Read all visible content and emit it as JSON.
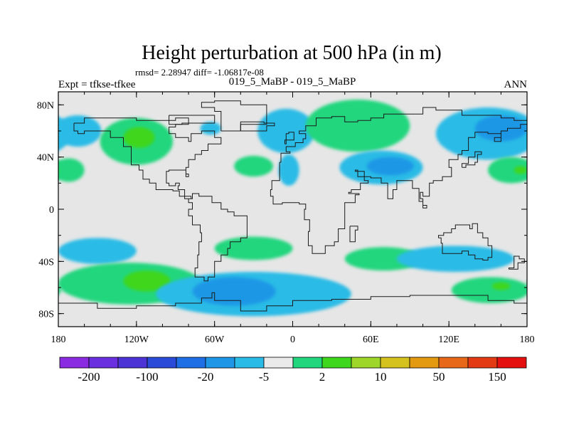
{
  "chart_data": {
    "type": "heatmap",
    "title": "Height perturbation at 500 hPa (in m)",
    "stats_line": "rmsd= 2.28947 diff= -1.06817e-08",
    "subtitle": "019_5_MaBP - 019_5_MaBP",
    "left_label": "Expt = tfkse-tfkee",
    "right_label": "ANN",
    "x_ticks": [
      {
        "value": -180,
        "label": "180"
      },
      {
        "value": -120,
        "label": "120W"
      },
      {
        "value": -60,
        "label": "60W"
      },
      {
        "value": 0,
        "label": "0"
      },
      {
        "value": 60,
        "label": "60E"
      },
      {
        "value": 120,
        "label": "120E"
      },
      {
        "value": 180,
        "label": "180"
      }
    ],
    "y_ticks": [
      {
        "value": 80,
        "label": "80N"
      },
      {
        "value": 40,
        "label": "40N"
      },
      {
        "value": 0,
        "label": "0"
      },
      {
        "value": -40,
        "label": "40S"
      },
      {
        "value": -80,
        "label": "80S"
      }
    ],
    "xlim": [
      -180,
      180
    ],
    "ylim": [
      -90,
      90
    ],
    "colorbar": {
      "colors": [
        "#8a2be2",
        "#6a30e0",
        "#4b33d6",
        "#2a4ad8",
        "#1e6fe6",
        "#1f97e6",
        "#2abbe6",
        "#eaeaea",
        "#22d67e",
        "#3fd61e",
        "#9fd62a",
        "#d6c21e",
        "#e49a10",
        "#e8681a",
        "#e43a14",
        "#e41010"
      ],
      "labels": [
        {
          "after_index": 0,
          "text": "-200"
        },
        {
          "after_index": 2,
          "text": "-100"
        },
        {
          "after_index": 4,
          "text": "-20"
        },
        {
          "after_index": 6,
          "text": "-5"
        },
        {
          "after_index": 8,
          "text": "2"
        },
        {
          "after_index": 10,
          "text": "10"
        },
        {
          "after_index": 12,
          "text": "50"
        },
        {
          "after_index": 14,
          "text": "150"
        }
      ]
    },
    "field_colors": {
      "background": "#e6e6e6",
      "pos_light": "#22d67e",
      "pos_strong": "#3fd61e",
      "neg_light": "#2abbe6",
      "neg_mid": "#1f97e6"
    },
    "anomalies": [
      {
        "sign": "neg",
        "level": 1,
        "lon": -165,
        "lat": 60,
        "rlon": 18,
        "rlat": 12
      },
      {
        "sign": "pos",
        "level": 1,
        "lon": -120,
        "lat": 52,
        "rlon": 28,
        "rlat": 18
      },
      {
        "sign": "pos",
        "level": 2,
        "lon": -118,
        "lat": 55,
        "rlon": 12,
        "rlat": 8
      },
      {
        "sign": "pos",
        "level": 1,
        "lon": -172,
        "lat": 30,
        "rlon": 12,
        "rlat": 9
      },
      {
        "sign": "neg",
        "level": 1,
        "lon": -63,
        "lat": 62,
        "rlon": 8,
        "rlat": 5
      },
      {
        "sign": "pos",
        "level": 1,
        "lon": -30,
        "lat": 33,
        "rlon": 15,
        "rlat": 8
      },
      {
        "sign": "neg",
        "level": 1,
        "lon": -5,
        "lat": 60,
        "rlon": 22,
        "rlat": 17
      },
      {
        "sign": "neg",
        "level": 1,
        "lon": -3,
        "lat": 30,
        "rlon": 8,
        "rlat": 12
      },
      {
        "sign": "pos",
        "level": 1,
        "lon": 50,
        "lat": 64,
        "rlon": 40,
        "rlat": 20
      },
      {
        "sign": "neg",
        "level": 1,
        "lon": 68,
        "lat": 32,
        "rlon": 32,
        "rlat": 13
      },
      {
        "sign": "neg",
        "level": 2,
        "lon": 75,
        "lat": 33,
        "rlon": 18,
        "rlat": 7
      },
      {
        "sign": "neg",
        "level": 1,
        "lon": 150,
        "lat": 58,
        "rlon": 40,
        "rlat": 20
      },
      {
        "sign": "neg",
        "level": 2,
        "lon": 160,
        "lat": 62,
        "rlon": 20,
        "rlat": 10
      },
      {
        "sign": "pos",
        "level": 1,
        "lon": 168,
        "lat": 30,
        "rlon": 18,
        "rlat": 10
      },
      {
        "sign": "pos",
        "level": 2,
        "lon": 175,
        "lat": 30,
        "rlon": 5,
        "rlat": 3
      },
      {
        "sign": "neg",
        "level": 1,
        "lon": -150,
        "lat": -32,
        "rlon": 30,
        "rlat": 10
      },
      {
        "sign": "pos",
        "level": 1,
        "lon": -125,
        "lat": -57,
        "rlon": 55,
        "rlat": 16
      },
      {
        "sign": "pos",
        "level": 2,
        "lon": -112,
        "lat": -55,
        "rlon": 18,
        "rlat": 8
      },
      {
        "sign": "neg",
        "level": 1,
        "lon": -30,
        "lat": -65,
        "rlon": 75,
        "rlat": 17
      },
      {
        "sign": "neg",
        "level": 2,
        "lon": -45,
        "lat": -63,
        "rlon": 32,
        "rlat": 11
      },
      {
        "sign": "pos",
        "level": 1,
        "lon": -30,
        "lat": -30,
        "rlon": 30,
        "rlat": 9
      },
      {
        "sign": "pos",
        "level": 1,
        "lon": 70,
        "lat": -38,
        "rlon": 30,
        "rlat": 9
      },
      {
        "sign": "neg",
        "level": 1,
        "lon": 125,
        "lat": -38,
        "rlon": 45,
        "rlat": 10
      },
      {
        "sign": "pos",
        "level": 1,
        "lon": 152,
        "lat": -62,
        "rlon": 30,
        "rlat": 10
      },
      {
        "sign": "pos",
        "level": 2,
        "lon": 160,
        "lat": -59,
        "rlon": 7,
        "rlat": 3
      }
    ],
    "coastlines": [
      [
        [
          -168,
          66
        ],
        [
          -160,
          70
        ],
        [
          -145,
          70
        ],
        [
          -130,
          70
        ],
        [
          -120,
          68
        ],
        [
          -110,
          68
        ],
        [
          -100,
          68
        ],
        [
          -90,
          70
        ],
        [
          -80,
          70
        ],
        [
          -80,
          65
        ],
        [
          -90,
          63
        ],
        [
          -95,
          58
        ],
        [
          -90,
          55
        ],
        [
          -80,
          52
        ],
        [
          -78,
          58
        ],
        [
          -70,
          60
        ],
        [
          -65,
          60
        ],
        [
          -60,
          55
        ],
        [
          -55,
          50
        ],
        [
          -65,
          45
        ],
        [
          -70,
          42
        ],
        [
          -75,
          38
        ],
        [
          -80,
          32
        ],
        [
          -82,
          27
        ],
        [
          -80,
          25
        ],
        [
          -82,
          30
        ],
        [
          -88,
          30
        ],
        [
          -95,
          29
        ],
        [
          -97,
          25
        ],
        [
          -97,
          20
        ],
        [
          -95,
          18
        ],
        [
          -90,
          20
        ],
        [
          -87,
          18
        ],
        [
          -88,
          15
        ],
        [
          -83,
          10
        ],
        [
          -78,
          8
        ],
        [
          -80,
          5
        ],
        [
          -77,
          0
        ],
        [
          -80,
          -5
        ],
        [
          -77,
          -12
        ],
        [
          -71,
          -18
        ],
        [
          -70,
          -25
        ],
        [
          -72,
          -35
        ],
        [
          -73,
          -45
        ],
        [
          -75,
          -52
        ],
        [
          -68,
          -55
        ],
        [
          -65,
          -52
        ],
        [
          -60,
          -40
        ],
        [
          -55,
          -35
        ],
        [
          -50,
          -30
        ],
        [
          -48,
          -25
        ],
        [
          -40,
          -22
        ],
        [
          -35,
          -10
        ],
        [
          -35,
          -5
        ],
        [
          -45,
          -2
        ],
        [
          -50,
          0
        ],
        [
          -55,
          5
        ],
        [
          -62,
          10
        ],
        [
          -72,
          12
        ],
        [
          -77,
          8
        ],
        [
          -83,
          10
        ],
        [
          -87,
          14
        ],
        [
          -92,
          15
        ],
        [
          -105,
          20
        ],
        [
          -110,
          23
        ],
        [
          -115,
          30
        ],
        [
          -118,
          34
        ],
        [
          -124,
          40
        ],
        [
          -124,
          48
        ],
        [
          -130,
          55
        ],
        [
          -140,
          60
        ],
        [
          -150,
          60
        ],
        [
          -160,
          58
        ],
        [
          -165,
          60
        ],
        [
          -168,
          66
        ]
      ],
      [
        [
          -55,
          60
        ],
        [
          -45,
          60
        ],
        [
          -40,
          65
        ],
        [
          -20,
          70
        ],
        [
          -20,
          80
        ],
        [
          -40,
          83
        ],
        [
          -60,
          82
        ],
        [
          -70,
          78
        ],
        [
          -60,
          75
        ],
        [
          -55,
          70
        ],
        [
          -55,
          60
        ]
      ],
      [
        [
          -10,
          36
        ],
        [
          -9,
          43
        ],
        [
          -2,
          44
        ],
        [
          -5,
          48
        ],
        [
          2,
          51
        ],
        [
          8,
          54
        ],
        [
          10,
          58
        ],
        [
          5,
          60
        ],
        [
          10,
          64
        ],
        [
          18,
          70
        ],
        [
          30,
          71
        ],
        [
          40,
          67
        ],
        [
          50,
          68
        ],
        [
          60,
          70
        ],
        [
          70,
          73
        ],
        [
          80,
          73
        ],
        [
          100,
          78
        ],
        [
          110,
          76
        ],
        [
          130,
          72
        ],
        [
          140,
          72
        ],
        [
          160,
          70
        ],
        [
          170,
          68
        ],
        [
          180,
          65
        ],
        [
          175,
          62
        ],
        [
          165,
          60
        ],
        [
          160,
          55
        ],
        [
          155,
          52
        ],
        [
          160,
          58
        ],
        [
          150,
          59
        ],
        [
          140,
          55
        ],
        [
          135,
          45
        ],
        [
          130,
          42
        ],
        [
          127,
          38
        ],
        [
          122,
          38
        ],
        [
          120,
          32
        ],
        [
          122,
          25
        ],
        [
          115,
          22
        ],
        [
          108,
          20
        ],
        [
          105,
          10
        ],
        [
          100,
          13
        ],
        [
          98,
          8
        ],
        [
          100,
          3
        ],
        [
          103,
          1
        ],
        [
          100,
          6
        ],
        [
          97,
          16
        ],
        [
          92,
          22
        ],
        [
          88,
          22
        ],
        [
          80,
          15
        ],
        [
          77,
          8
        ],
        [
          73,
          20
        ],
        [
          68,
          24
        ],
        [
          60,
          25
        ],
        [
          57,
          25
        ],
        [
          50,
          30
        ],
        [
          48,
          29
        ],
        [
          55,
          22
        ],
        [
          58,
          20
        ],
        [
          52,
          15
        ],
        [
          45,
          13
        ],
        [
          43,
          12
        ],
        [
          51,
          11
        ],
        [
          48,
          5
        ],
        [
          40,
          -5
        ],
        [
          40,
          -15
        ],
        [
          35,
          -25
        ],
        [
          32,
          -28
        ],
        [
          25,
          -34
        ],
        [
          18,
          -34
        ],
        [
          15,
          -28
        ],
        [
          12,
          -17
        ],
        [
          13,
          -8
        ],
        [
          9,
          0
        ],
        [
          10,
          4
        ],
        [
          5,
          5
        ],
        [
          -5,
          5
        ],
        [
          -8,
          4
        ],
        [
          -15,
          10
        ],
        [
          -17,
          15
        ],
        [
          -16,
          22
        ],
        [
          -10,
          28
        ],
        [
          -10,
          36
        ]
      ],
      [
        [
          112,
          -22
        ],
        [
          114,
          -26
        ],
        [
          115,
          -34
        ],
        [
          120,
          -34
        ],
        [
          130,
          -32
        ],
        [
          135,
          -35
        ],
        [
          140,
          -38
        ],
        [
          146,
          -39
        ],
        [
          150,
          -37
        ],
        [
          153,
          -28
        ],
        [
          150,
          -22
        ],
        [
          146,
          -18
        ],
        [
          142,
          -11
        ],
        [
          138,
          -15
        ],
        [
          136,
          -12
        ],
        [
          130,
          -12
        ],
        [
          125,
          -15
        ],
        [
          122,
          -18
        ],
        [
          116,
          -20
        ],
        [
          112,
          -22
        ]
      ],
      [
        [
          -180,
          -72
        ],
        [
          -150,
          -76
        ],
        [
          -120,
          -74
        ],
        [
          -90,
          -72
        ],
        [
          -70,
          -68
        ],
        [
          -62,
          -64
        ],
        [
          -60,
          -70
        ],
        [
          -40,
          -78
        ],
        [
          -20,
          -74
        ],
        [
          0,
          -70
        ],
        [
          30,
          -69
        ],
        [
          60,
          -67
        ],
        [
          90,
          -66
        ],
        [
          120,
          -66
        ],
        [
          150,
          -70
        ],
        [
          170,
          -72
        ],
        [
          180,
          -77
        ]
      ],
      [
        [
          -6,
          50
        ],
        [
          -5,
          58
        ],
        [
          -3,
          59
        ],
        [
          1,
          53
        ],
        [
          -6,
          50
        ]
      ],
      [
        [
          44,
          -13
        ],
        [
          50,
          -16
        ],
        [
          48,
          -25
        ],
        [
          44,
          -24
        ],
        [
          44,
          -13
        ]
      ],
      [
        [
          130,
          32
        ],
        [
          133,
          34
        ],
        [
          140,
          36
        ],
        [
          142,
          42
        ],
        [
          145,
          44
        ],
        [
          140,
          40
        ],
        [
          135,
          35
        ],
        [
          130,
          32
        ]
      ],
      [
        [
          166,
          -46
        ],
        [
          173,
          -41
        ],
        [
          178,
          -38
        ],
        [
          174,
          -36
        ],
        [
          170,
          -45
        ],
        [
          166,
          -46
        ]
      ],
      [
        [
          -40,
          60
        ],
        [
          -20,
          64
        ],
        [
          -14,
          66
        ],
        [
          -22,
          67
        ],
        [
          -40,
          60
        ]
      ],
      [
        [
          -95,
          72
        ],
        [
          -75,
          72
        ],
        [
          -60,
          66
        ],
        [
          -85,
          65
        ],
        [
          -95,
          72
        ]
      ]
    ]
  }
}
